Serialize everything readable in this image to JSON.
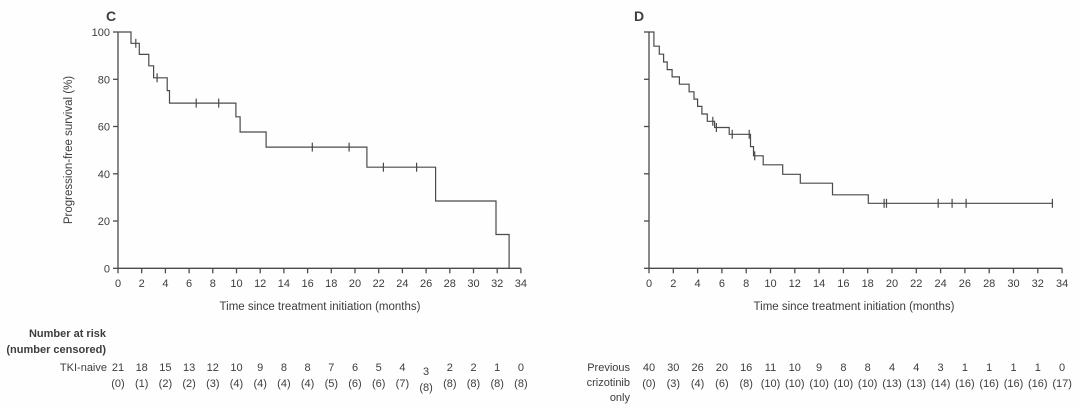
{
  "figure": {
    "risk_header_line1": "Number at risk",
    "risk_header_line2": "(number censored)"
  },
  "colors": {
    "ink": "#3d3d3d",
    "curve": "#4a4a4a",
    "background": "#ffffff"
  },
  "chart_data": [
    {
      "type": "line",
      "subtype": "kaplan_meier_step",
      "panel_label": "C",
      "xlabel": "Time since treatment initiation (months)",
      "ylabel": "Progression-free survival (%)",
      "xlim": [
        0,
        34
      ],
      "ylim": [
        0,
        100
      ],
      "xticks": [
        0,
        2,
        4,
        6,
        8,
        10,
        12,
        14,
        16,
        18,
        20,
        22,
        24,
        26,
        28,
        30,
        32,
        34
      ],
      "yticks": [
        0,
        20,
        40,
        60,
        80,
        100
      ],
      "show_y_tick_labels": true,
      "grid": false,
      "legend": "none",
      "series": [
        {
          "name": "TKI-naive",
          "steps": [
            [
              0,
              100
            ],
            [
              1.1,
              95.2
            ],
            [
              1.8,
              90.5
            ],
            [
              2.6,
              85.7
            ],
            [
              3.0,
              80.6
            ],
            [
              4.15,
              75.2
            ],
            [
              4.35,
              69.9
            ],
            [
              9.95,
              64.1
            ],
            [
              10.3,
              57.7
            ],
            [
              12.5,
              51.3
            ],
            [
              21.0,
              42.8
            ],
            [
              26.8,
              28.5
            ],
            [
              31.9,
              14.3
            ],
            [
              33.0,
              0
            ]
          ],
          "censor_marks": [
            [
              1.5,
              95.2
            ],
            [
              3.3,
              80.6
            ],
            [
              6.6,
              69.9
            ],
            [
              8.5,
              69.9
            ],
            [
              16.4,
              51.3
            ],
            [
              19.5,
              51.3
            ],
            [
              22.4,
              42.8
            ],
            [
              25.2,
              42.8
            ]
          ],
          "end_time": 33.0
        }
      ],
      "at_risk": {
        "row_label_lines": [
          "TKI-naive"
        ],
        "times": [
          0,
          2,
          4,
          6,
          8,
          10,
          12,
          14,
          16,
          18,
          20,
          22,
          24,
          26,
          28,
          30,
          32,
          34
        ],
        "n_at_risk": [
          21,
          18,
          15,
          13,
          12,
          10,
          9,
          8,
          8,
          7,
          6,
          5,
          4,
          3,
          2,
          2,
          1,
          0
        ],
        "n_censored": [
          0,
          1,
          2,
          2,
          3,
          4,
          4,
          4,
          4,
          5,
          6,
          6,
          7,
          8,
          8,
          8,
          8,
          8
        ]
      }
    },
    {
      "type": "line",
      "subtype": "kaplan_meier_step",
      "panel_label": "D",
      "xlabel": "Time since treatment initiation (months)",
      "ylabel": "Progression-free survival (%)",
      "xlim": [
        0,
        34
      ],
      "ylim": [
        0,
        100
      ],
      "xticks": [
        0,
        2,
        4,
        6,
        8,
        10,
        12,
        14,
        16,
        18,
        20,
        22,
        24,
        26,
        28,
        30,
        32,
        34
      ],
      "yticks": [
        0,
        20,
        40,
        60,
        80,
        100
      ],
      "show_y_tick_labels": false,
      "grid": false,
      "legend": "none",
      "series": [
        {
          "name": "Previous crizotinib only",
          "steps": [
            [
              0,
              100
            ],
            [
              0.4,
              94.0
            ],
            [
              0.85,
              90.6
            ],
            [
              1.2,
              87.3
            ],
            [
              1.5,
              84.1
            ],
            [
              1.9,
              81.0
            ],
            [
              2.5,
              77.9
            ],
            [
              3.3,
              74.7
            ],
            [
              3.7,
              71.6
            ],
            [
              4.0,
              68.5
            ],
            [
              4.35,
              65.3
            ],
            [
              4.8,
              62.2
            ],
            [
              5.4,
              59.6
            ],
            [
              6.6,
              56.7
            ],
            [
              8.35,
              51.5
            ],
            [
              8.6,
              47.6
            ],
            [
              9.4,
              43.8
            ],
            [
              11.0,
              39.8
            ],
            [
              12.45,
              36.0
            ],
            [
              15.1,
              31.1
            ],
            [
              18.05,
              27.5
            ]
          ],
          "censor_marks": [
            [
              5.25,
              62.2
            ],
            [
              5.55,
              59.6
            ],
            [
              6.85,
              56.7
            ],
            [
              8.25,
              56.7
            ],
            [
              8.7,
              47.6
            ],
            [
              19.35,
              27.5
            ],
            [
              19.55,
              27.5
            ],
            [
              23.8,
              27.5
            ],
            [
              24.95,
              27.5
            ],
            [
              26.1,
              27.5
            ],
            [
              33.2,
              27.5
            ]
          ],
          "end_time": 33.2
        }
      ],
      "at_risk": {
        "row_label_lines": [
          "Previous",
          "crizotinib",
          "only"
        ],
        "times": [
          0,
          2,
          4,
          6,
          8,
          10,
          12,
          14,
          16,
          18,
          20,
          22,
          24,
          26,
          28,
          30,
          32,
          34
        ],
        "n_at_risk": [
          40,
          30,
          26,
          20,
          16,
          11,
          10,
          9,
          8,
          8,
          4,
          4,
          3,
          1,
          1,
          1,
          1,
          0
        ],
        "n_censored": [
          0,
          3,
          4,
          6,
          8,
          10,
          10,
          10,
          10,
          10,
          13,
          13,
          14,
          16,
          16,
          16,
          16,
          17
        ]
      }
    }
  ]
}
